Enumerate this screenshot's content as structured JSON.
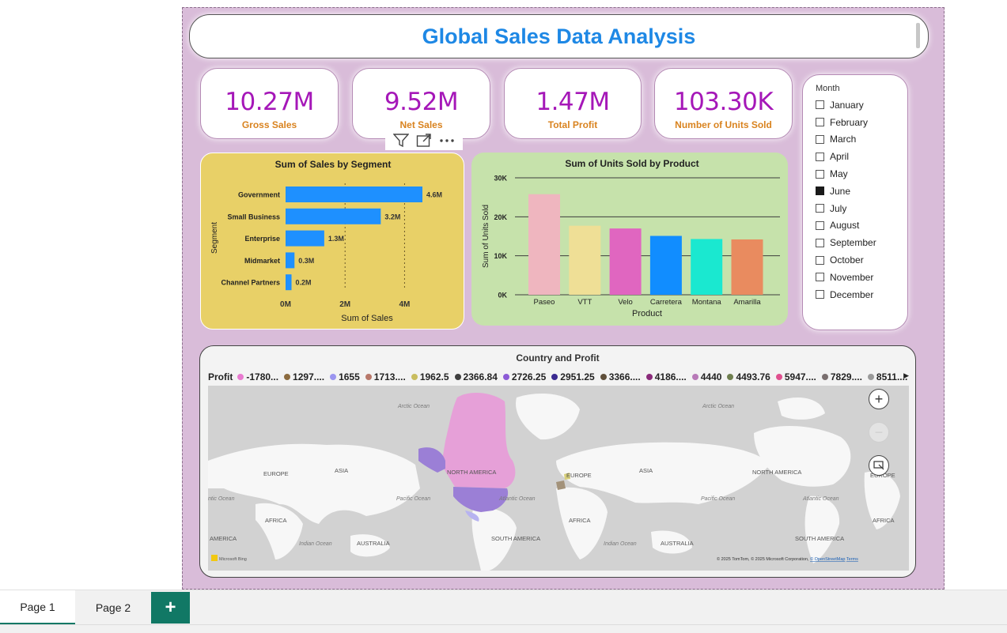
{
  "title": "Global Sales Data Analysis",
  "kpis": [
    {
      "value": "10.27M",
      "label": "Gross Sales"
    },
    {
      "value": "9.52M",
      "label": "Net Sales"
    },
    {
      "value": "1.47M",
      "label": "Total Profit"
    },
    {
      "value": "103.30K",
      "label": "Number of Units Sold"
    }
  ],
  "visual_toolbar": {
    "icons": [
      "filter-icon",
      "focus-mode-icon",
      "more-options-icon"
    ]
  },
  "slicer": {
    "title": "Month",
    "items": [
      {
        "label": "January",
        "checked": false
      },
      {
        "label": "February",
        "checked": false
      },
      {
        "label": "March",
        "checked": false
      },
      {
        "label": "April",
        "checked": false
      },
      {
        "label": "May",
        "checked": false
      },
      {
        "label": "June",
        "checked": true
      },
      {
        "label": "July",
        "checked": false
      },
      {
        "label": "August",
        "checked": false
      },
      {
        "label": "September",
        "checked": false
      },
      {
        "label": "October",
        "checked": false
      },
      {
        "label": "November",
        "checked": false
      },
      {
        "label": "December",
        "checked": false
      }
    ]
  },
  "chart_data": [
    {
      "type": "bar",
      "orientation": "horizontal",
      "title": "Sum of Sales by Segment",
      "xlabel": "Sum of Sales",
      "ylabel": "Segment",
      "categories": [
        "Government",
        "Small Business",
        "Enterprise",
        "Midmarket",
        "Channel Partners"
      ],
      "values": [
        4.6,
        3.2,
        1.3,
        0.3,
        0.2
      ],
      "data_labels": [
        "4.6M",
        "3.2M",
        "1.3M",
        "0.3M",
        "0.2M"
      ],
      "xticks": [
        0,
        2,
        4
      ],
      "xtick_labels": [
        "0M",
        "2M",
        "4M"
      ],
      "xlim": [
        0,
        4.6
      ],
      "bar_color": "#1e90ff",
      "grid": "vertical dotted"
    },
    {
      "type": "bar",
      "title": "Sum of Units Sold by Product",
      "xlabel": "Product",
      "ylabel": "Sum of Units Sold",
      "categories": [
        "Paseo",
        "VTT",
        "Velo",
        "Carretera",
        "Montana",
        "Amarilla"
      ],
      "values": [
        25800,
        17700,
        17000,
        15100,
        14300,
        14200
      ],
      "colors": [
        "#efb6bf",
        "#efdf96",
        "#e066c0",
        "#118dff",
        "#1ae8d0",
        "#e98b5f"
      ],
      "yticks": [
        0,
        10000,
        20000,
        30000
      ],
      "ytick_labels": [
        "0K",
        "10K",
        "20K",
        "30K"
      ],
      "ylim": [
        0,
        30000
      ],
      "grid": "horizontal"
    }
  ],
  "map": {
    "title": "Country and Profit",
    "legend_title": "Profit",
    "legend": [
      {
        "label": "-1780...",
        "color": "#e87bd0"
      },
      {
        "label": "1297....",
        "color": "#8c6b3f"
      },
      {
        "label": "1655",
        "color": "#9b95f0"
      },
      {
        "label": "1713....",
        "color": "#b8786a"
      },
      {
        "label": "1962.5",
        "color": "#c9bd5f"
      },
      {
        "label": "2366.84",
        "color": "#3f3f3f"
      },
      {
        "label": "2726.25",
        "color": "#8c5bd6"
      },
      {
        "label": "2951.25",
        "color": "#3a2a90"
      },
      {
        "label": "3366....",
        "color": "#5f4f3a"
      },
      {
        "label": "4186....",
        "color": "#8a2a7a"
      },
      {
        "label": "4440",
        "color": "#b87ab8"
      },
      {
        "label": "4493.76",
        "color": "#6f7f4f"
      },
      {
        "label": "5947....",
        "color": "#e0508f"
      },
      {
        "label": "7829....",
        "color": "#7a6f6f"
      },
      {
        "label": "8511....",
        "color": "#9a9a9a"
      }
    ],
    "labels": {
      "arctic_ocean_1": "Arctic Ocean",
      "arctic_ocean_2": "Arctic Ocean",
      "europe_1": "EUROPE",
      "asia_1": "ASIA",
      "north_america_1": "NORTH AMERICA",
      "europe_2": "EUROPE",
      "asia_2": "ASIA",
      "north_america_2": "NORTH AMERICA",
      "europe_3": "EUROPE",
      "atlantic_ocean_1": "ntic Ocean",
      "pacific_ocean_1": "Pacific Ocean",
      "atlantic_ocean_2": "Atlantic Ocean",
      "pacific_ocean_2": "Pacific Ocean",
      "atlantic_ocean_3": "Atlantic Ocean",
      "africa_1": "AFRICA",
      "africa_2": "AFRICA",
      "africa_3": "AFRICA",
      "indian_ocean_1": "Indian Ocean",
      "indian_ocean_2": "Indian Ocean",
      "america_left": "AMERICA",
      "australia_1": "AUSTRALIA",
      "south_america_1": "SOUTH AMERICA",
      "australia_2": "AUSTRALIA",
      "south_america_2": "SOUTH AMERICA"
    },
    "attribution": "© 2025 TomTom, © 2025 Microsoft Corporation,",
    "attribution_link": "© OpenStreetMap",
    "terms": "Terms",
    "brand": "Microsoft Bing",
    "controls": [
      "zoom-in",
      "zoom-out",
      "select"
    ]
  },
  "tabs": [
    {
      "label": "Page 1",
      "active": true
    },
    {
      "label": "Page 2",
      "active": false
    }
  ],
  "add_tab_label": "+"
}
